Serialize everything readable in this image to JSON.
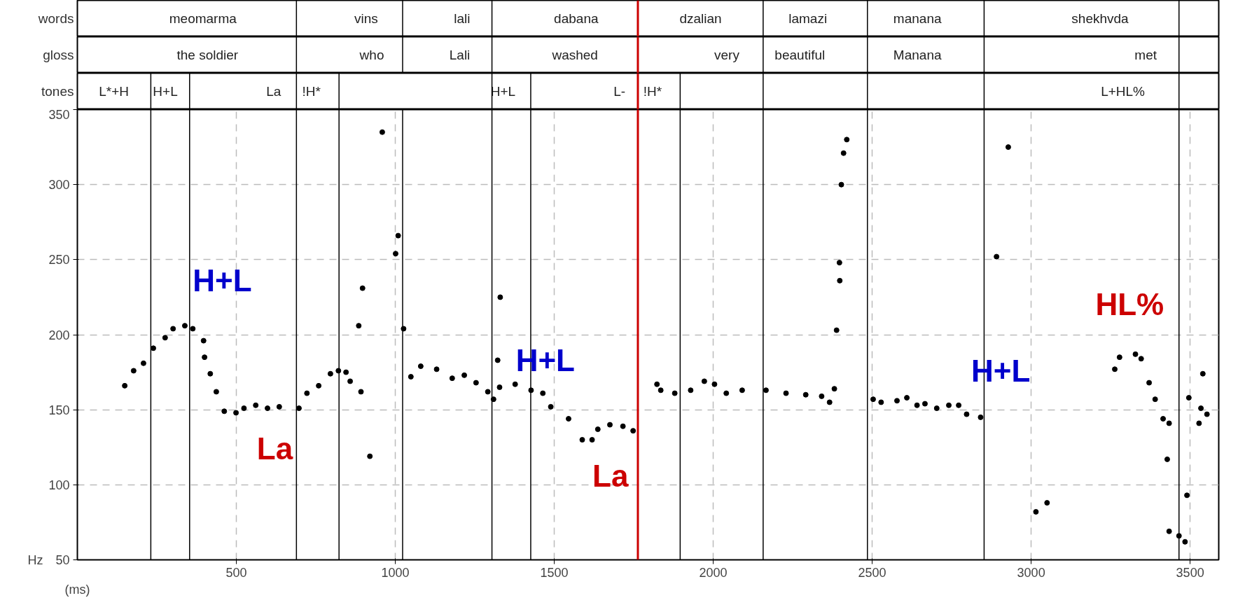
{
  "chart_data": [
    {
      "type": "other",
      "ylabel": "words",
      "annotations": [
        "meomarma",
        "vins",
        "lali",
        "dabana",
        "dzalian",
        "lamazi",
        "manana",
        "shekhvda"
      ]
    },
    {
      "type": "other",
      "ylabel": "gloss",
      "annotations": [
        "the soldier",
        "who",
        "Lali",
        "washed",
        "very",
        "beautiful",
        "Manana",
        "met"
      ]
    },
    {
      "type": "other",
      "ylabel": "tones",
      "annotations": [
        "L*+H",
        "H+L",
        "La",
        "!H*",
        "H+L",
        "L-",
        "!H*",
        "L+HL%"
      ]
    },
    {
      "type": "scatter",
      "xlabel": "(ms)",
      "ylabel": "Hz",
      "xlim": [
        0,
        3590
      ],
      "ylim": [
        50,
        350
      ],
      "xticks": [
        500,
        1000,
        1500,
        2000,
        2500,
        3000,
        3500
      ],
      "yticks": [
        50,
        100,
        150,
        200,
        250,
        300,
        350
      ],
      "grid": true,
      "marker": "circle",
      "series": [
        {
          "color": "#000000",
          "x": [
            149,
            177,
            208,
            239,
            276,
            301,
            338,
            363,
            397,
            400,
            418,
            437,
            462,
            499,
            524,
            561,
            598,
            635,
            697,
            722,
            759,
            796,
            821,
            845,
            858,
            885,
            897,
            892,
            920,
            959,
            1001,
            1009,
            1026,
            1049,
            1080,
            1130,
            1179,
            1217,
            1254,
            1291,
            1309,
            1328,
            1322,
            1330,
            1377,
            1427,
            1464,
            1489,
            1545,
            1588,
            1619,
            1637,
            1675,
            1716,
            1748,
            1823,
            1835,
            1879,
            1929,
            1972,
            2004,
            2041,
            2091,
            2166,
            2229,
            2291,
            2341,
            2366,
            2381,
            2388,
            2398,
            2397,
            2403,
            2410,
            2420,
            2503,
            2528,
            2578,
            2609,
            2641,
            2666,
            2703,
            2741,
            2772,
            2797,
            2841,
            2891,
            2928,
            3015,
            3050,
            3263,
            3278,
            3328,
            3346,
            3371,
            3390,
            3415,
            3434,
            3428,
            3434,
            3465,
            3484,
            3490,
            3496,
            3528,
            3534,
            3540,
            3553
          ],
          "values": [
            166,
            176,
            181,
            191,
            198,
            204,
            206,
            204,
            196,
            185,
            174,
            162,
            149,
            148,
            151,
            153,
            151,
            152,
            151,
            161,
            166,
            174,
            176,
            175,
            169,
            206,
            231,
            162,
            119,
            335,
            254,
            266,
            204,
            172,
            179,
            177,
            171,
            173,
            168,
            162,
            157,
            165,
            183,
            225,
            167,
            163,
            161,
            152,
            144,
            130,
            130,
            137,
            140,
            139,
            136,
            167,
            163,
            161,
            163,
            169,
            167,
            161,
            163,
            163,
            161,
            160,
            159,
            155,
            164,
            203,
            236,
            248,
            300,
            321,
            330,
            157,
            155,
            156,
            158,
            153,
            154,
            151,
            153,
            153,
            147,
            145,
            252,
            325,
            82,
            88,
            177,
            185,
            187,
            184,
            168,
            157,
            144,
            141,
            117,
            69,
            66,
            62,
            93,
            158,
            141,
            151,
            174,
            147
          ]
        }
      ],
      "annotations": [
        "H+L",
        "La",
        "H+L",
        "La",
        "H+L",
        "HL%"
      ],
      "ref_lines": [
        {
          "axis": "x",
          "value": 231
        },
        {
          "axis": "x",
          "value": 353
        },
        {
          "axis": "x",
          "value": 689
        },
        {
          "axis": "x",
          "value": 823
        },
        {
          "axis": "x",
          "value": 1023
        },
        {
          "axis": "x",
          "value": 1304
        },
        {
          "axis": "x",
          "value": 1426
        },
        {
          "axis": "x",
          "value": 1763,
          "color": "#cc0000"
        },
        {
          "axis": "x",
          "value": 1896
        },
        {
          "axis": "x",
          "value": 2157
        },
        {
          "axis": "x",
          "value": 2485
        },
        {
          "axis": "x",
          "value": 2852
        },
        {
          "axis": "x",
          "value": 3465
        }
      ]
    }
  ]
}
